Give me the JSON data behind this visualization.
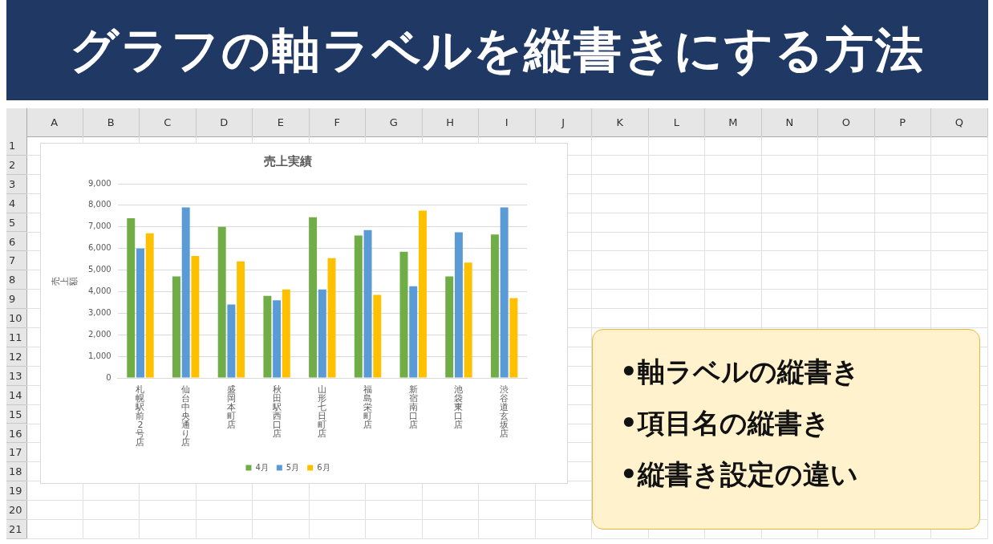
{
  "chart_data": [
    {
      "type": "other",
      "title": "グラフの軸ラベルを縦書きにする方法",
      "annotations": [
        "•軸ラベルの縦書き",
        "•項目名の縦書き",
        "•縦書き設定の違い"
      ]
    },
    {
      "type": "bar",
      "title": "売上実績",
      "ylabel": "売上額",
      "categories": [
        "札幌駅前2号店",
        "仙台中央通り店",
        "盛岡本町店",
        "秋田駅西口店",
        "山形七日町店",
        "福島栄町店",
        "新宿南口店",
        "池袋東口店",
        "渋谷道玄坂店"
      ],
      "series": [
        {
          "name": "4月",
          "color": "#70ad47",
          "values": [
            7400,
            4700,
            7000,
            3800,
            7450,
            6600,
            5850,
            4700,
            6650
          ]
        },
        {
          "name": "5月",
          "color": "#5b9bd5",
          "values": [
            6000,
            7900,
            3400,
            3600,
            4100,
            6850,
            4250,
            6750,
            7900
          ]
        },
        {
          "name": "6月",
          "color": "#ffc000",
          "values": [
            6700,
            5650,
            5400,
            4100,
            5550,
            3850,
            7750,
            5350,
            3700
          ]
        }
      ],
      "ylim": [
        0,
        9000
      ],
      "yticks": [
        {
          "value": 0,
          "label": "0"
        },
        {
          "value": 1000,
          "label": "1,000"
        },
        {
          "value": 2000,
          "label": "2,000"
        },
        {
          "value": 3000,
          "label": "3,000"
        },
        {
          "value": 4000,
          "label": "4,000"
        },
        {
          "value": 5000,
          "label": "5,000"
        },
        {
          "value": 6000,
          "label": "6,000"
        },
        {
          "value": 7000,
          "label": "7,000"
        },
        {
          "value": 8000,
          "label": "8,000"
        },
        {
          "value": 9000,
          "label": "9,000"
        }
      ],
      "grid": "y",
      "legend": "bottom"
    },
    {
      "type": "heatmap",
      "categories": [
        "A",
        "B",
        "C",
        "D",
        "E",
        "F",
        "G",
        "H",
        "I",
        "J",
        "K",
        "L",
        "M",
        "N",
        "O",
        "P",
        "Q"
      ],
      "y_categories": [
        "1",
        "2",
        "3",
        "4",
        "5",
        "6",
        "7",
        "8",
        "9",
        "10",
        "11",
        "12",
        "13",
        "14",
        "15",
        "16",
        "17",
        "18",
        "19",
        "20",
        "21"
      ],
      "cells": [
        [
          null,
          null,
          null,
          null,
          null,
          null,
          null,
          null,
          null,
          null,
          null,
          null,
          null,
          null,
          null,
          null,
          null
        ],
        [
          null,
          null,
          null,
          null,
          null,
          null,
          null,
          null,
          null,
          null,
          null,
          null,
          null,
          null,
          null,
          null,
          null
        ],
        [
          null,
          null,
          null,
          null,
          null,
          null,
          null,
          null,
          null,
          null,
          null,
          null,
          null,
          null,
          null,
          null,
          null
        ],
        [
          null,
          null,
          null,
          null,
          null,
          null,
          null,
          null,
          null,
          null,
          null,
          null,
          null,
          null,
          null,
          null,
          null
        ],
        [
          null,
          null,
          null,
          null,
          null,
          null,
          null,
          null,
          null,
          null,
          null,
          null,
          null,
          null,
          null,
          null,
          null
        ],
        [
          null,
          null,
          null,
          null,
          null,
          null,
          null,
          null,
          null,
          null,
          null,
          null,
          null,
          null,
          null,
          null,
          null
        ],
        [
          null,
          null,
          null,
          null,
          null,
          null,
          null,
          null,
          null,
          null,
          null,
          null,
          null,
          null,
          null,
          null,
          null
        ],
        [
          null,
          null,
          null,
          null,
          null,
          null,
          null,
          null,
          null,
          null,
          null,
          null,
          null,
          null,
          null,
          null,
          null
        ],
        [
          null,
          null,
          null,
          null,
          null,
          null,
          null,
          null,
          null,
          null,
          null,
          null,
          null,
          null,
          null,
          null,
          null
        ],
        [
          null,
          null,
          null,
          null,
          null,
          null,
          null,
          null,
          null,
          null,
          null,
          null,
          null,
          null,
          null,
          null,
          null
        ],
        [
          null,
          null,
          null,
          null,
          null,
          null,
          null,
          null,
          null,
          null,
          null,
          null,
          null,
          null,
          null,
          null,
          null
        ],
        [
          null,
          null,
          null,
          null,
          null,
          null,
          null,
          null,
          null,
          null,
          null,
          null,
          null,
          null,
          null,
          null,
          null
        ],
        [
          null,
          null,
          null,
          null,
          null,
          null,
          null,
          null,
          null,
          null,
          null,
          null,
          null,
          null,
          null,
          null,
          null
        ],
        [
          null,
          null,
          null,
          null,
          null,
          null,
          null,
          null,
          null,
          null,
          null,
          null,
          null,
          null,
          null,
          null,
          null
        ],
        [
          null,
          null,
          null,
          null,
          null,
          null,
          null,
          null,
          null,
          null,
          null,
          null,
          null,
          null,
          null,
          null,
          null
        ],
        [
          null,
          null,
          null,
          null,
          null,
          null,
          null,
          null,
          null,
          null,
          null,
          null,
          null,
          null,
          null,
          null,
          null
        ],
        [
          null,
          null,
          null,
          null,
          null,
          null,
          null,
          null,
          null,
          null,
          null,
          null,
          null,
          null,
          null,
          null,
          null
        ],
        [
          null,
          null,
          null,
          null,
          null,
          null,
          null,
          null,
          null,
          null,
          null,
          null,
          null,
          null,
          null,
          null,
          null
        ],
        [
          null,
          null,
          null,
          null,
          null,
          null,
          null,
          null,
          null,
          null,
          null,
          null,
          null,
          null,
          null,
          null,
          null
        ],
        [
          null,
          null,
          null,
          null,
          null,
          null,
          null,
          null,
          null,
          null,
          null,
          null,
          null,
          null,
          null,
          null,
          null
        ],
        [
          null,
          null,
          null,
          null,
          null,
          null,
          null,
          null,
          null,
          null,
          null,
          null,
          null,
          null,
          null,
          null,
          null
        ]
      ]
    }
  ]
}
